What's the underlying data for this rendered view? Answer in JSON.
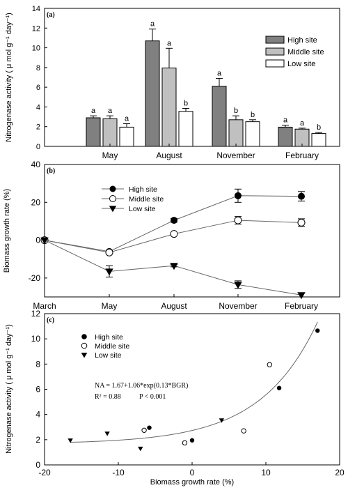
{
  "figure": {
    "groups": [
      "High site",
      "Middle site",
      "Low site"
    ]
  },
  "chart_data": [
    {
      "panel": "(a)",
      "type": "bar",
      "categories": [
        "May",
        "August",
        "November",
        "February"
      ],
      "ylabel": "Nitrogenase activity ( μ mol g⁻¹ day⁻¹)",
      "ylim": [
        0,
        14
      ],
      "yticks": [
        0,
        2,
        4,
        6,
        8,
        10,
        12,
        14
      ],
      "legend": "top-right",
      "series": [
        {
          "name": "High site",
          "color": "#808080",
          "values": [
            2.9,
            10.7,
            6.1,
            1.95
          ],
          "errors": [
            0.2,
            1.2,
            0.8,
            0.2
          ],
          "letters": [
            "a",
            "a",
            "a",
            "a"
          ]
        },
        {
          "name": "Middle site",
          "color": "#c0c0c0",
          "values": [
            2.8,
            7.95,
            2.7,
            1.75
          ],
          "errors": [
            0.3,
            2.0,
            0.4,
            0.1
          ],
          "letters": [
            "a",
            "a",
            "b",
            "a"
          ]
        },
        {
          "name": "Low site",
          "color": "#ffffff",
          "values": [
            1.95,
            3.55,
            2.5,
            1.3
          ],
          "errors": [
            0.35,
            0.3,
            0.2,
            0.1
          ],
          "letters": [
            "a",
            "b",
            "b",
            "b"
          ]
        }
      ]
    },
    {
      "panel": "(b)",
      "type": "line",
      "categories": [
        "March",
        "May",
        "August",
        "November",
        "February"
      ],
      "ylabel": "Biomass growth rate (%)",
      "ylim": [
        -30,
        40
      ],
      "yticks": [
        -20,
        0,
        20,
        40
      ],
      "legend": "top-left",
      "series": [
        {
          "name": "High site",
          "marker": "filled-circle",
          "values": [
            0,
            -6,
            10.5,
            23.5,
            23.2
          ],
          "errors": [
            0,
            0.6,
            1.0,
            3.5,
            2.5
          ]
        },
        {
          "name": "Middle site",
          "marker": "open-circle",
          "values": [
            0,
            -6.5,
            3.3,
            10.5,
            9.3
          ],
          "errors": [
            0,
            0.6,
            0.6,
            2.0,
            2.0
          ]
        },
        {
          "name": "Low site",
          "marker": "filled-triangle-down",
          "values": [
            0,
            -16.5,
            -13.5,
            -23.5,
            -29
          ],
          "errors": [
            0,
            3.0,
            0.6,
            2.0,
            1.0
          ]
        }
      ]
    },
    {
      "panel": "(c)",
      "type": "scatter",
      "xlabel": "Biomass growth rate (%)",
      "ylabel": "Nitrogenase activity ( μ mol g⁻¹ day⁻¹)",
      "xlim": [
        -20,
        20
      ],
      "ylim": [
        0,
        12
      ],
      "xticks": [
        -20,
        -10,
        0,
        10,
        20
      ],
      "yticks": [
        0,
        2,
        4,
        6,
        8,
        10,
        12
      ],
      "legend": "top-left",
      "equation": "NA = 1.67+1.06*exp(0.13*BGR)",
      "stats_r2": "R² = 0.88",
      "stats_p": "P < 0.001",
      "curve": {
        "a": 1.67,
        "b": 1.06,
        "c": 0.13,
        "x_from": -16.5,
        "x_to": 17
      },
      "series": [
        {
          "name": "High site",
          "marker": "filled-circle",
          "points": [
            [
              -5.8,
              2.95
            ],
            [
              0,
              1.95
            ],
            [
              11.8,
              6.1
            ],
            [
              17,
              10.65
            ]
          ]
        },
        {
          "name": "Middle site",
          "marker": "open-circle",
          "points": [
            [
              -6.5,
              2.75
            ],
            [
              -1,
              1.75
            ],
            [
              7,
              2.7
            ],
            [
              10.5,
              7.95
            ]
          ]
        },
        {
          "name": "Low site",
          "marker": "filled-triangle-down",
          "points": [
            [
              -16.5,
              1.95
            ],
            [
              -11.5,
              2.5
            ],
            [
              -7,
              1.3
            ],
            [
              4,
              3.55
            ]
          ]
        }
      ]
    }
  ]
}
